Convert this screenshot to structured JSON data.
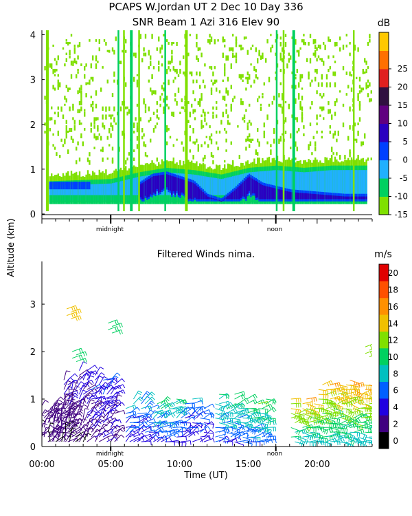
{
  "header": {
    "title_line1": "PCAPS W.Jordan UT   2 Dec 10 Day 336",
    "title_line2": "SNR Beam 1 Azi 316 Elev 90"
  },
  "shared": {
    "yaxis_label": "Altitude (km)",
    "xaxis_label": "Time (UT)",
    "midnight_label": "midnight",
    "noon_label": "noon",
    "xticks": [
      "00:00",
      "05:00",
      "10:00",
      "15:00",
      "20:00"
    ]
  },
  "chart_data": [
    {
      "type": "heatmap",
      "title": "SNR Beam 1 Azi 316 Elev 90",
      "xlabel": "Time (UT)",
      "ylabel": "Altitude (km)",
      "xlim": [
        0,
        24
      ],
      "ylim": [
        0,
        4.1
      ],
      "yticks": [
        "0",
        "1",
        "2",
        "3",
        "4"
      ],
      "colorbar": {
        "unit": "dB",
        "min": -15,
        "max": 30,
        "ticks": [
          "-15",
          "-10",
          "-5",
          "0",
          "5",
          "10",
          "15",
          "20",
          "25"
        ],
        "colors": [
          "#7fe000",
          "#00d060",
          "#20b0ff",
          "#0040ff",
          "#2a00c0",
          "#600080",
          "#301040",
          "#e02020",
          "#ff7000",
          "#ffc800"
        ]
      },
      "layers": [
        {
          "name": "surface_inversion_low",
          "x": [
            0.5,
            5,
            7,
            9,
            11,
            13,
            15,
            17,
            19,
            21,
            23.6
          ],
          "top_km": [
            0.75,
            0.8,
            0.95,
            1.05,
            1.0,
            0.9,
            1.05,
            1.1,
            1.05,
            1.1,
            1.1
          ],
          "snr_db": 0
        },
        {
          "name": "strong_echo_layer",
          "x": [
            7,
            8,
            9,
            10,
            11,
            12,
            13,
            14,
            15,
            16,
            18,
            20,
            22,
            23.6
          ],
          "top_km": [
            0.7,
            0.9,
            0.95,
            0.85,
            0.75,
            0.45,
            0.35,
            0.6,
            0.9,
            0.7,
            0.55,
            0.5,
            0.45,
            0.45
          ],
          "snr_db": 10
        }
      ],
      "rain_columns_hours": [
        0.3,
        5.5,
        5.9,
        6.4,
        7.0,
        8.9,
        10.4,
        17.0,
        17.5,
        18.2,
        22.6
      ]
    },
    {
      "type": "scatter",
      "title": "Filtered Winds nima.",
      "xlabel": "Time (UT)",
      "ylabel": "Altitude (km)",
      "xlim": [
        0,
        24
      ],
      "ylim": [
        0,
        3.9
      ],
      "yticks": [
        "0",
        "1",
        "2",
        "3"
      ],
      "colorbar": {
        "unit": "m/s",
        "ticks": [
          "0",
          "2",
          "4",
          "6",
          "8",
          "10",
          "12",
          "14",
          "16",
          "18",
          "20"
        ],
        "colors": [
          "#000000",
          "#400080",
          "#2000e0",
          "#0060ff",
          "#00c0c0",
          "#00d060",
          "#80e000",
          "#f0c000",
          "#ff9000",
          "#ff5000",
          "#e00000"
        ]
      },
      "wind_groups": [
        {
          "time_h": 0.5,
          "alt_max_km": 0.9,
          "speed_ms": 3,
          "dir_deg": 210
        },
        {
          "time_h": 1.5,
          "alt_max_km": 1.0,
          "speed_ms": 3,
          "dir_deg": 200
        },
        {
          "time_h": 2.5,
          "alt_max_km": 1.6,
          "speed_ms": 4,
          "dir_deg": 220
        },
        {
          "time_h": 4.5,
          "alt_max_km": 1.5,
          "speed_ms": 5,
          "dir_deg": 230
        },
        {
          "time_h": 7.0,
          "alt_max_km": 1.0,
          "speed_ms": 7,
          "dir_deg": 240
        },
        {
          "time_h": 9.0,
          "alt_max_km": 1.1,
          "speed_ms": 9,
          "dir_deg": 250
        },
        {
          "time_h": 11.0,
          "alt_max_km": 1.0,
          "speed_ms": 7,
          "dir_deg": 250
        },
        {
          "time_h": 13.5,
          "alt_max_km": 1.1,
          "speed_ms": 9,
          "dir_deg": 260
        },
        {
          "time_h": 15.5,
          "alt_max_km": 1.0,
          "speed_ms": 10,
          "dir_deg": 260
        },
        {
          "time_h": 19.0,
          "alt_max_km": 1.0,
          "speed_ms": 13,
          "dir_deg": 270
        },
        {
          "time_h": 21.0,
          "alt_max_km": 1.5,
          "speed_ms": 14,
          "dir_deg": 270
        },
        {
          "time_h": 23.0,
          "alt_max_km": 1.4,
          "speed_ms": 14,
          "dir_deg": 270
        }
      ],
      "elevated_wind_groups": [
        {
          "time_h": 1.8,
          "alt_km": 2.9,
          "speed_ms": 14
        },
        {
          "time_h": 2.2,
          "alt_km": 2.0,
          "speed_ms": 11
        },
        {
          "time_h": 4.8,
          "alt_km": 2.6,
          "speed_ms": 10
        },
        {
          "time_h": 23.5,
          "alt_km": 2.1,
          "speed_ms": 13
        }
      ]
    }
  ]
}
